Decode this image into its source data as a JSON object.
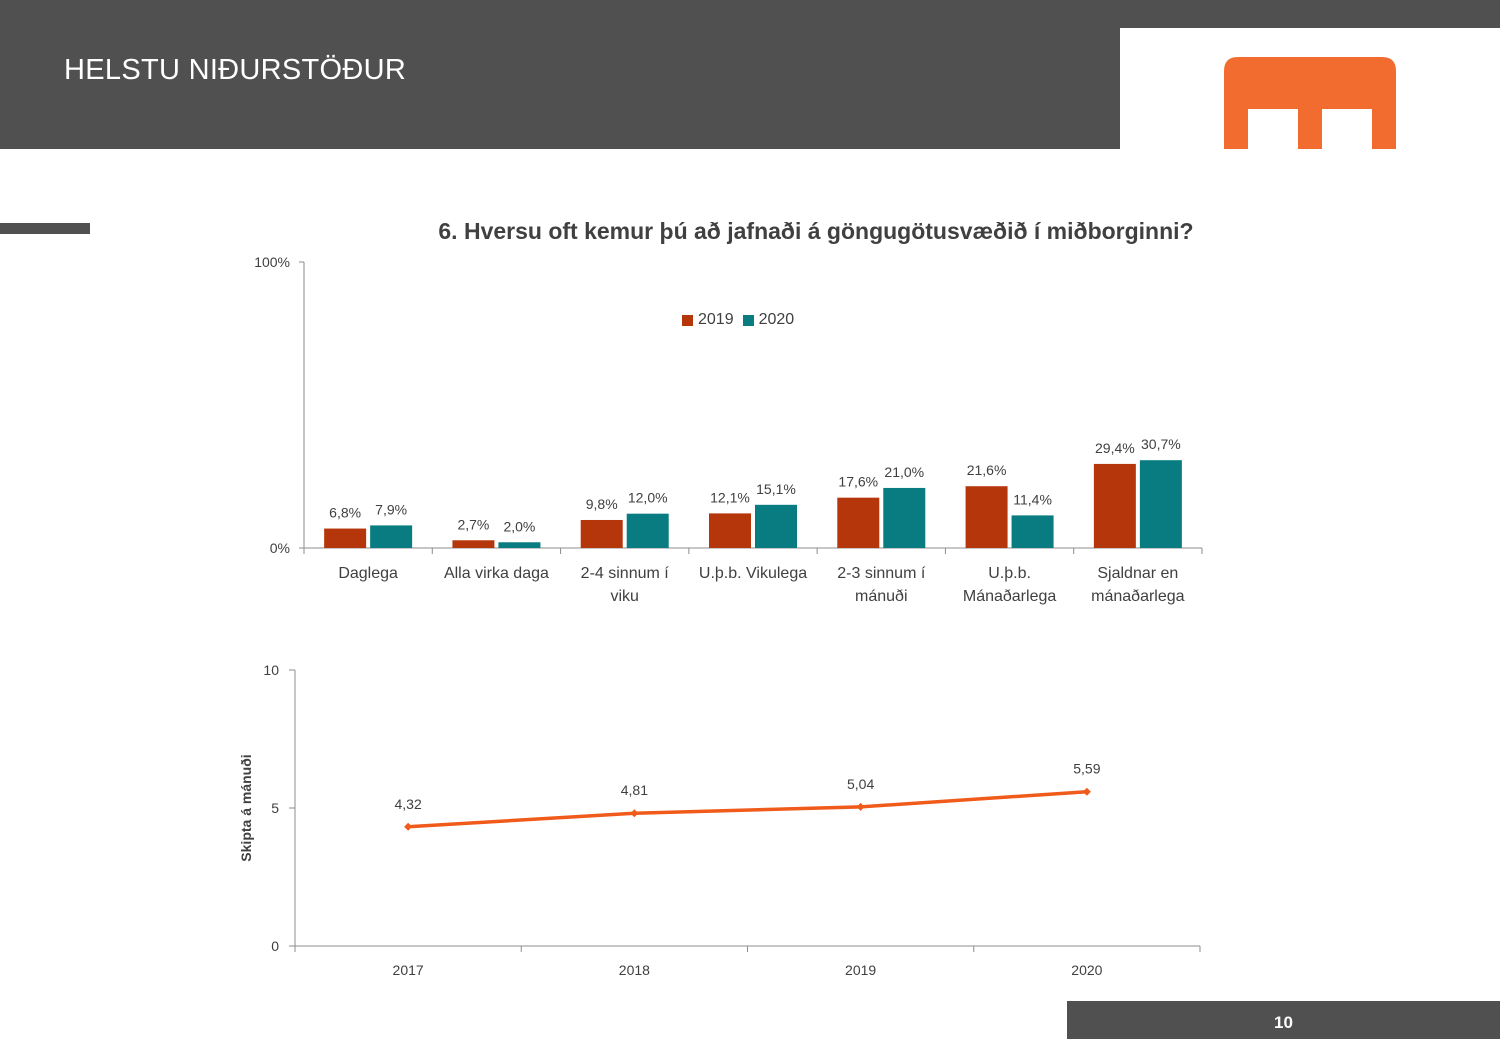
{
  "header": {
    "title": "HELSTU NIÐURSTÖÐUR",
    "logo_color": "#F26B2F",
    "bar_color": "#505050"
  },
  "footer": {
    "page_number": "10"
  },
  "chart_data": [
    {
      "type": "bar",
      "title": "6. Hversu oft kemur þú að jafnaði á göngugötusvæðið í miðborginni?",
      "categories": [
        [
          "Daglega"
        ],
        [
          "Alla virka daga"
        ],
        [
          "2-4 sinnum í",
          "viku"
        ],
        [
          "U.þ.b. Vikulega"
        ],
        [
          "2-3 sinnum í",
          "mánuði"
        ],
        [
          "U.þ.b.",
          "Mánaðarlega"
        ],
        [
          "Sjaldnar en",
          "mánaðarlega"
        ]
      ],
      "series": [
        {
          "name": "2019",
          "color": "#B5360B",
          "values": [
            6.8,
            2.7,
            9.8,
            12.1,
            17.6,
            21.6,
            29.4
          ],
          "labels": [
            "6,8%",
            "2,7%",
            "9,8%",
            "12,1%",
            "17,6%",
            "21,6%",
            "29,4%"
          ]
        },
        {
          "name": "2020",
          "color": "#087C80",
          "values": [
            7.9,
            2.0,
            12.0,
            15.1,
            21.0,
            11.4,
            30.7
          ],
          "labels": [
            "7,9%",
            "2,0%",
            "12,0%",
            "15,1%",
            "21,0%",
            "11,4%",
            "30,7%"
          ]
        }
      ],
      "ylim": [
        0,
        100
      ],
      "y_ticks": [
        "0%",
        "100%"
      ],
      "legend": "top-center"
    },
    {
      "type": "line",
      "ylabel": "Skipta á mánuði",
      "categories": [
        "2017",
        "2018",
        "2019",
        "2020"
      ],
      "series": [
        {
          "color": "#F05A1A",
          "values": [
            4.32,
            4.81,
            5.04,
            5.59
          ],
          "labels": [
            "4,32",
            "4,81",
            "5,04",
            "5,59"
          ]
        }
      ],
      "ylim": [
        0,
        10
      ],
      "y_ticks": [
        "0",
        "5",
        "10"
      ]
    }
  ]
}
